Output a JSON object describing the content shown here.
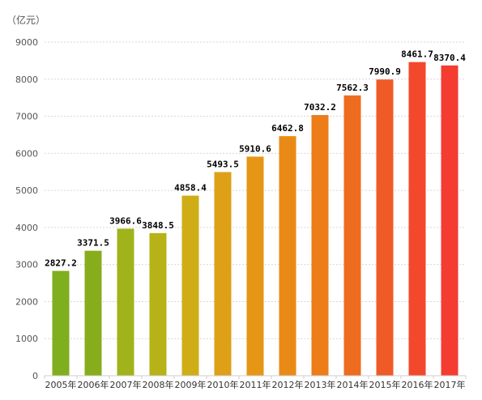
{
  "chart_data": {
    "type": "bar",
    "unit_label": "（亿元）",
    "categories": [
      "2005年",
      "2006年",
      "2007年",
      "2008年",
      "2009年",
      "2010年",
      "2011年",
      "2012年",
      "2013年",
      "2014年",
      "2015年",
      "2016年",
      "2017年"
    ],
    "values": [
      2827.2,
      3371.5,
      3966.6,
      3848.5,
      4858.4,
      5493.5,
      5910.6,
      6462.8,
      7032.2,
      7562.3,
      7990.9,
      8461.7,
      8370.4
    ],
    "value_labels": [
      "2827.2",
      "3371.5",
      "3966.6",
      "3848.5",
      "4858.4",
      "5493.5",
      "5910.6",
      "6462.8",
      "7032.2",
      "7562.3",
      "7990.9",
      "8461.7",
      "8370.4"
    ],
    "ylim": [
      0,
      9000
    ],
    "yticks": [
      "0",
      "1000",
      "2000",
      "3000",
      "4000",
      "5000",
      "6000",
      "7000",
      "8000",
      "9000"
    ],
    "grid": true,
    "bar_colors": [
      "#7fae1f",
      "#87ad1d",
      "#a0b31a",
      "#b6b218",
      "#cfad17",
      "#dea016",
      "#e69615",
      "#ea8a16",
      "#ec7d19",
      "#ee6c20",
      "#f05a27",
      "#f3482c",
      "#f43c30"
    ]
  }
}
